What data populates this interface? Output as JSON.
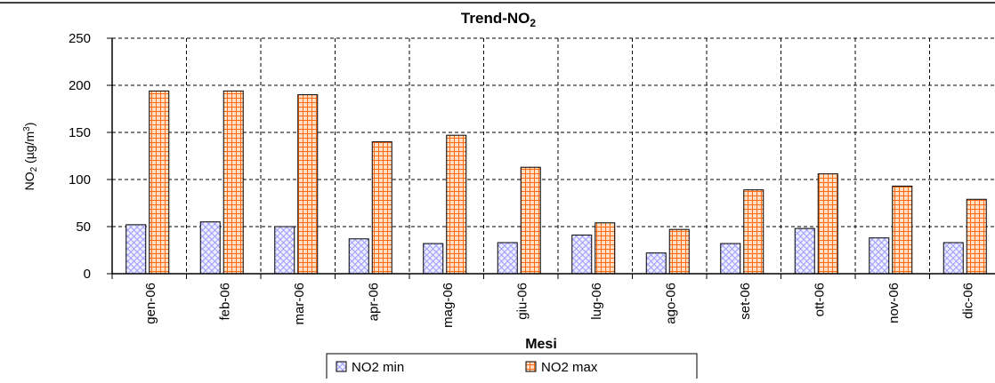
{
  "chart_data": {
    "type": "bar",
    "title_main": "Trend-NO",
    "title_sub": "2",
    "ylabel_main": "NO",
    "ylabel_sub": "2",
    "ylabel_unit_open": " (µg/m",
    "ylabel_unit_sup": "3",
    "ylabel_unit_close": ")",
    "xlabel": "Mesi",
    "ylim": [
      0,
      250
    ],
    "yticks": [
      0,
      50,
      100,
      150,
      200,
      250
    ],
    "grid": true,
    "legend_position": "bottom",
    "categories": [
      "gen-06",
      "feb-06",
      "mar-06",
      "apr-06",
      "mag-06",
      "giu-06",
      "lug-06",
      "ago-06",
      "set-06",
      "ott-06",
      "nov-06",
      "dic-06"
    ],
    "series": [
      {
        "name": "NO2 min",
        "color": "#9999ff",
        "values": [
          52,
          55,
          50,
          37,
          32,
          33,
          41,
          22,
          32,
          48,
          38,
          33
        ]
      },
      {
        "name": "NO2 max",
        "color": "#ff6600",
        "values": [
          194,
          194,
          190,
          140,
          147,
          113,
          54,
          47,
          89,
          106,
          93,
          79
        ]
      }
    ]
  }
}
